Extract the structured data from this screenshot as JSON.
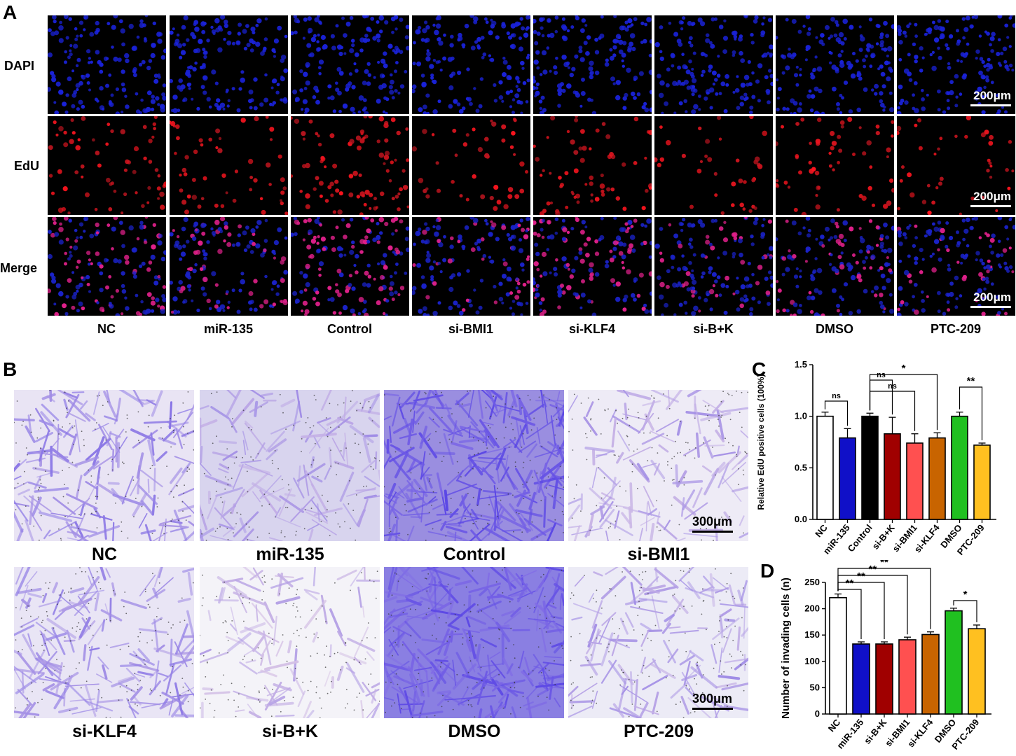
{
  "panel_a": {
    "letter": "A",
    "rows": [
      "DAPI",
      "EdU",
      "Merge"
    ],
    "columns": [
      "NC",
      "miR-135",
      "Control",
      "si-BMI1",
      "si-KLF4",
      "si-B+K",
      "DMSO",
      "PTC-209"
    ],
    "scale_bar": "200μm"
  },
  "panel_b": {
    "letter": "B",
    "top_labels": [
      "NC",
      "miR-135",
      "Control",
      "si-BMI1"
    ],
    "bottom_labels": [
      "si-KLF4",
      "si-B+K",
      "DMSO",
      "PTC-209"
    ],
    "scale_bar": "300μm"
  },
  "colors": {
    "white": "#ffffff",
    "blue": "#1010c8",
    "black": "#000000",
    "dark_red": "#a00000",
    "salmon": "#ff5050",
    "brown": "#c86400",
    "green": "#20c020",
    "orange": "#ffc020"
  },
  "chart_data": [
    {
      "panel": "C",
      "type": "bar",
      "ylabel": "Relative EdU positive cells (100%)",
      "ylim": [
        0,
        1.5
      ],
      "yticks": [
        "0.0",
        "0.5",
        "1.0",
        "1.5"
      ],
      "categories": [
        "NC",
        "miR-135",
        "Control",
        "si-B+K",
        "si-BMI1",
        "si-KLF4",
        "DMSO",
        "PTC-209"
      ],
      "values": [
        1.0,
        0.79,
        1.0,
        0.83,
        0.74,
        0.79,
        1.0,
        0.72
      ],
      "errors": [
        0.04,
        0.09,
        0.03,
        0.16,
        0.09,
        0.05,
        0.04,
        0.02
      ],
      "bar_colors": [
        "#ffffff",
        "#1010c8",
        "#000000",
        "#a00000",
        "#ff5050",
        "#c86400",
        "#20c020",
        "#ffc020"
      ],
      "significance": [
        {
          "from": 0,
          "to": 1,
          "label": "ns"
        },
        {
          "from": 2,
          "to": 3,
          "label": "ns"
        },
        {
          "from": 2,
          "to": 4,
          "label": "ns"
        },
        {
          "from": 2,
          "to": 5,
          "label": "*"
        },
        {
          "from": 6,
          "to": 7,
          "label": "**"
        }
      ]
    },
    {
      "panel": "D",
      "type": "bar",
      "ylabel": "Number of invading cells (n)",
      "ylim": [
        0,
        250
      ],
      "yticks": [
        "0",
        "50",
        "100",
        "150",
        "200",
        "250"
      ],
      "categories": [
        "NC",
        "miR-135",
        "si-B+K",
        "si-BMI1",
        "si-KLF4",
        "DMSO",
        "PTC-209"
      ],
      "values": [
        221,
        133,
        133,
        141,
        151,
        196,
        162
      ],
      "errors": [
        7,
        4,
        4,
        5,
        5,
        5,
        7
      ],
      "bar_colors": [
        "#ffffff",
        "#1010c8",
        "#a00000",
        "#ff5050",
        "#c86400",
        "#20c020",
        "#ffc020"
      ],
      "significance": [
        {
          "from": 0,
          "to": 1,
          "label": "**"
        },
        {
          "from": 0,
          "to": 2,
          "label": "**"
        },
        {
          "from": 0,
          "to": 3,
          "label": "**"
        },
        {
          "from": 0,
          "to": 4,
          "label": "**"
        },
        {
          "from": 5,
          "to": 6,
          "label": "*"
        }
      ]
    }
  ]
}
